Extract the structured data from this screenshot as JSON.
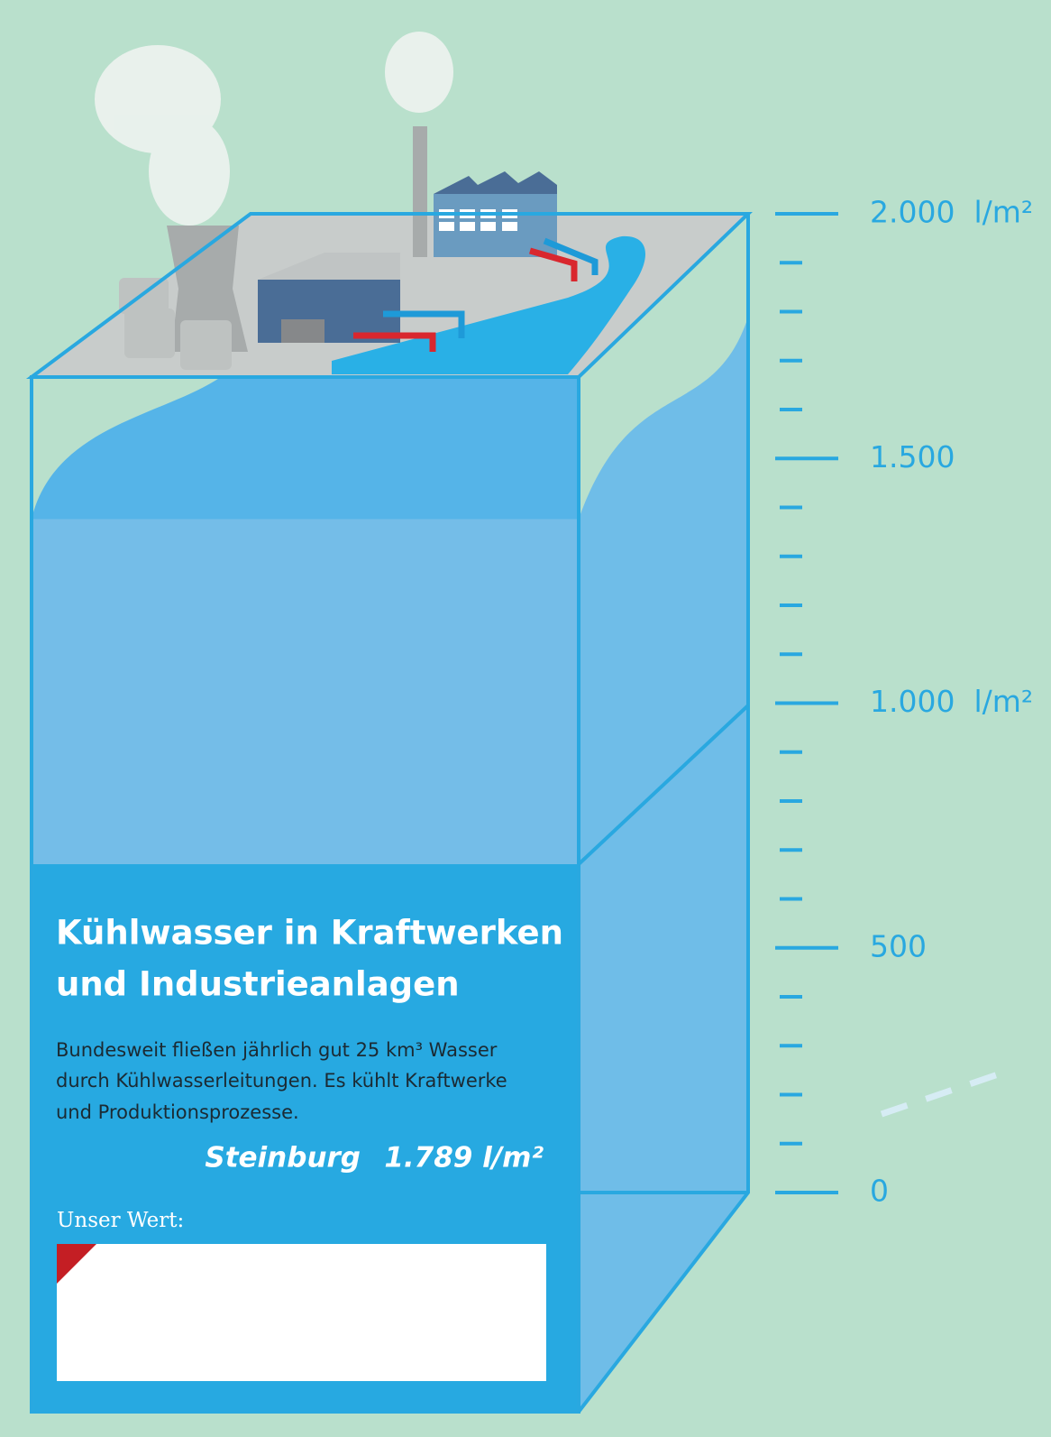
{
  "scale": {
    "lim": [
      0,
      2000
    ],
    "ticks": [
      0,
      100,
      200,
      300,
      400,
      500,
      600,
      700,
      800,
      900,
      1000,
      1100,
      1200,
      1300,
      1400,
      1500,
      1600,
      1700,
      1800,
      1900,
      2000
    ],
    "labels": [
      {
        "value": 0,
        "label": "0"
      },
      {
        "value": 500,
        "label": "500"
      },
      {
        "value": 1000,
        "label": "1.000  l/m²"
      },
      {
        "value": 1500,
        "label": "1.500"
      },
      {
        "value": 2000,
        "label": "2.000  l/m²"
      }
    ]
  },
  "panel": {
    "title": [
      "Kühlwasser in Kraftwerken",
      "und Industrieanlagen"
    ],
    "description": [
      "Bundesweit fließen jährlich gut 25 km³ Wasser",
      "durch Kühlwasserleitungen. Es kühlt Kraftwerke",
      "und Produktionsprozesse."
    ],
    "region": "Steinburg",
    "value": 1789,
    "value_label": "1.789 l/m²",
    "input_label": "Unser Wert:"
  }
}
